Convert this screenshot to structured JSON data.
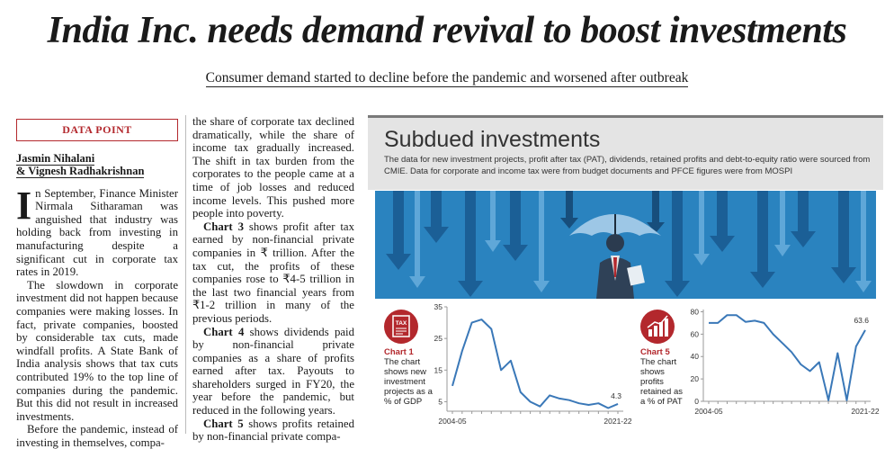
{
  "headline": "India Inc. needs demand revival to boost investments",
  "deck": "Consumer demand started to decline before the pandemic and worsened after outbreak",
  "section_label": "DATA POINT",
  "authors": [
    "Jasmin Nihalani",
    "& Vignesh Radhakrishnan"
  ],
  "col1": {
    "dropcap": "I",
    "p1": "n September, Finance Minister Nirmala Sitharaman was anguished that industry was holding back from investing in manufacturing despite a significant cut in corporate tax rates in 2019.",
    "p2": "The slowdown in corporate investment did not happen because companies were making losses. In fact, private companies, boosted by considerable tax cuts, made windfall profits. A State Bank of India analysis shows that tax cuts contributed 19% to the top line of companies during the pandemic. But this did not result in increased investments.",
    "p3": "Before the pandemic, instead of investing in themselves, compa-"
  },
  "col2": {
    "p1": "the share of corporate tax declined dramatically, while the share of income tax gradually increased. The shift in tax burden from the corporates to the people came at a time of job losses and reduced income levels. This pushed more people into poverty.",
    "p2_lead": "Chart 3",
    "p2": " shows profit after tax earned by non-financial private companies in ₹ trillion. After the tax cut, the profits of these companies rose to ₹4-5 trillion in the last two financial years from ₹1-2 trillion in many of the previous periods.",
    "p3_lead": "Chart 4",
    "p3": " shows dividends paid by non-financial private companies as a share of profits earned after tax. Payouts to shareholders surged in FY20, the year before the pandemic, but reduced in the following years.",
    "p4_lead": "Chart 5",
    "p4": " shows profits retained by non-financial private compa-"
  },
  "panel": {
    "title": "Subdued investments",
    "subtitle": "The data for new investment projects, profit after tax (PAT), dividends, retained profits and debt-to-equity ratio were sourced from CMIE. Data for corporate and income tax were from budget documents and PFCE figures were from MOSPI"
  },
  "colors": {
    "accent": "#b3282d",
    "line": "#3a78b8",
    "illus_bg": "#2a83bf"
  },
  "icons": [
    "tax-receipt-icon",
    "bar-growth-icon",
    "umbrella-businessman-illustration"
  ],
  "chart_data": [
    {
      "type": "line",
      "name": "Chart 1",
      "caption": "The chart shows new investment projects as a % of GDP",
      "x_start_label": "2004-05",
      "x_end_label": "2021-22",
      "x": [
        "2004-05",
        "2005-06",
        "2006-07",
        "2007-08",
        "2008-09",
        "2009-10",
        "2010-11",
        "2011-12",
        "2012-13",
        "2013-14",
        "2014-15",
        "2015-16",
        "2016-17",
        "2017-18",
        "2018-19",
        "2019-20",
        "2020-21",
        "2021-22"
      ],
      "values": [
        10,
        21,
        30,
        31,
        28,
        15,
        18,
        8,
        5,
        3.5,
        7,
        6,
        5.5,
        4.5,
        4,
        4.5,
        3,
        4.3
      ],
      "yticks": [
        5,
        15,
        25,
        35
      ],
      "ylim": [
        2,
        35
      ],
      "end_label": "4.3"
    },
    {
      "type": "line",
      "name": "Chart 5",
      "caption": "The chart shows profits retained as a % of PAT",
      "x_start_label": "2004-05",
      "x_end_label": "2021-22",
      "x": [
        "2004-05",
        "2005-06",
        "2006-07",
        "2007-08",
        "2008-09",
        "2009-10",
        "2010-11",
        "2011-12",
        "2012-13",
        "2013-14",
        "2014-15",
        "2015-16",
        "2016-17",
        "2017-18",
        "2018-19",
        "2019-20",
        "2020-21",
        "2021-22"
      ],
      "values": [
        70,
        70,
        77,
        77,
        71,
        72,
        70,
        60,
        52,
        44,
        33,
        27,
        35,
        1,
        43,
        1,
        49,
        63.6
      ],
      "yticks": [
        0,
        20,
        40,
        60,
        80
      ],
      "ylim": [
        0,
        82
      ],
      "end_label": "63.6"
    }
  ]
}
